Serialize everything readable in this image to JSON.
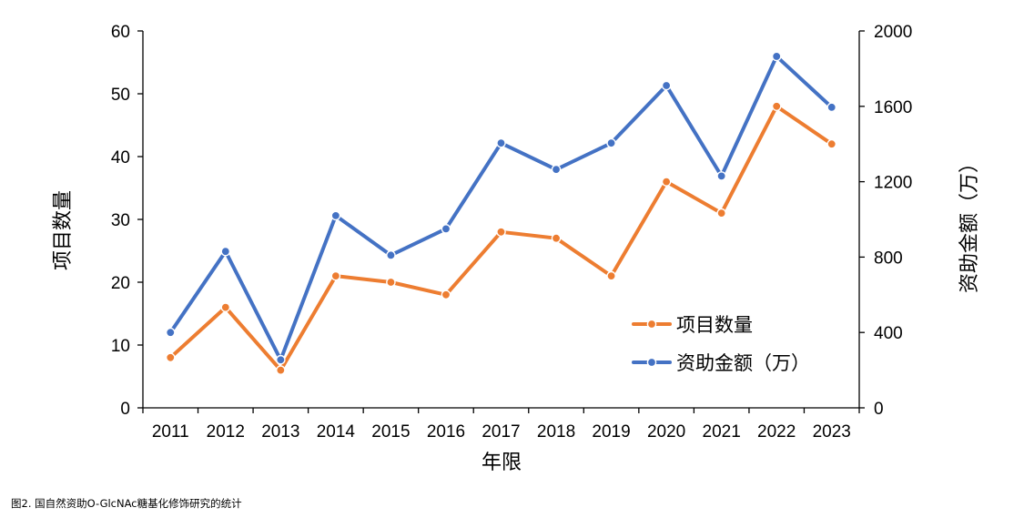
{
  "chart_data": {
    "type": "line",
    "categories": [
      "2011",
      "2012",
      "2013",
      "2014",
      "2015",
      "2016",
      "2017",
      "2018",
      "2019",
      "2020",
      "2021",
      "2022",
      "2023"
    ],
    "series": [
      {
        "name": "项目数量",
        "axis": "left",
        "color": "#ED7D31",
        "values": [
          8,
          16,
          6,
          21,
          20,
          18,
          28,
          27,
          21,
          36,
          31,
          48,
          42
        ]
      },
      {
        "name": "资助金额（万）",
        "axis": "right",
        "color": "#4472C4",
        "values": [
          400,
          830,
          255,
          1020,
          810,
          950,
          1405,
          1265,
          1405,
          1710,
          1230,
          1865,
          1595
        ]
      }
    ],
    "xlabel": "年限",
    "ylabel": "项目数量",
    "y2label": "资助金额（万）",
    "ylim": [
      0,
      60
    ],
    "y2lim": [
      0,
      2000
    ],
    "yticks": [
      "0",
      "10",
      "20",
      "30",
      "40",
      "50",
      "60"
    ],
    "y2ticks": [
      "0",
      "400",
      "800",
      "1200",
      "1600",
      "2000"
    ],
    "legend_position": "bottom-right",
    "grid": false
  },
  "caption": "图2. 国自然资助O-GlcNAc糖基化修饰研究的统计"
}
